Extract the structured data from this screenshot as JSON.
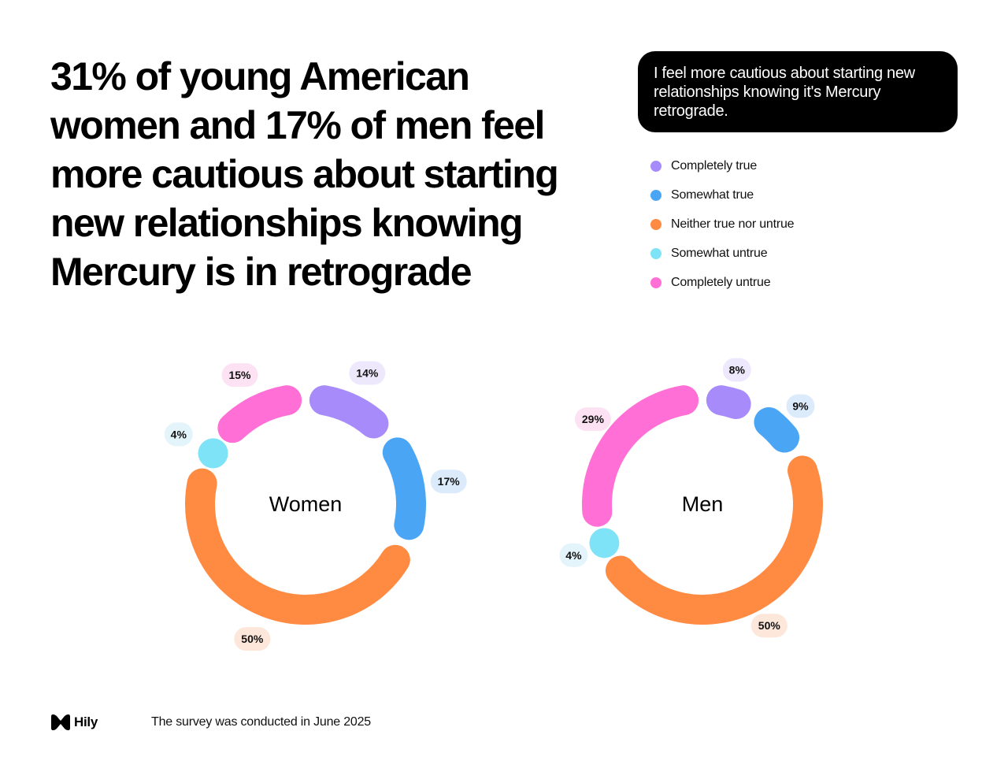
{
  "headline": "31% of young American women and 17% of men feel more cautious about starting new relationships knowing Mercury is in retrograde",
  "question": "I feel more cautious about starting new relationships knowing it's Mercury retrograde.",
  "legend": [
    {
      "label": "Completely true",
      "color": "#A78BFA"
    },
    {
      "label": "Somewhat true",
      "color": "#4AA6F5"
    },
    {
      "label": "Neither true nor untrue",
      "color": "#FF8A42"
    },
    {
      "label": "Somewhat untrue",
      "color": "#7FE3F7"
    },
    {
      "label": "Completely untrue",
      "color": "#FF6FD6"
    }
  ],
  "chart_data": [
    {
      "type": "pie",
      "variant": "donut",
      "center_label": "Women",
      "categories": [
        "Completely true",
        "Somewhat true",
        "Neither true nor untrue",
        "Somewhat untrue",
        "Completely untrue"
      ],
      "values": [
        14,
        17,
        50,
        4,
        15
      ],
      "value_labels": [
        "14%",
        "17%",
        "50%",
        "4%",
        "15%"
      ]
    },
    {
      "type": "pie",
      "variant": "donut",
      "center_label": "Men",
      "categories": [
        "Completely true",
        "Somewhat true",
        "Neither true nor untrue",
        "Somewhat untrue",
        "Completely untrue"
      ],
      "values": [
        8,
        9,
        50,
        4,
        29
      ],
      "value_labels": [
        "8%",
        "9%",
        "50%",
        "4%",
        "29%"
      ]
    }
  ],
  "colors": {
    "Completely true": "#A78BFA",
    "Somewhat true": "#4AA6F5",
    "Neither true nor untrue": "#FF8A42",
    "Somewhat untrue": "#7FE3F7",
    "Completely untrue": "#FF6FD6"
  },
  "label_bg": {
    "Completely true": "#EEE8FD",
    "Somewhat true": "#DCEBFB",
    "Neither true nor untrue": "#FDE6DA",
    "Somewhat untrue": "#E3F4FB",
    "Completely untrue": "#FDE2F3"
  },
  "footer": {
    "brand": "Hily",
    "note": "The survey was conducted in June 2025"
  }
}
